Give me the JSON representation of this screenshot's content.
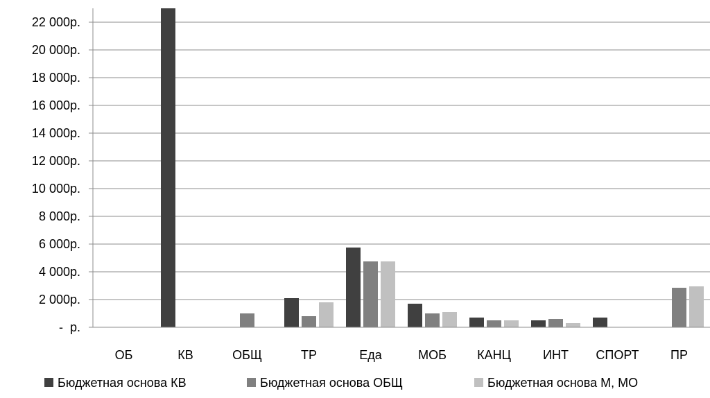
{
  "chart_data": {
    "type": "bar",
    "categories": [
      "ОБ",
      "КВ",
      "ОБЩ",
      "ТР",
      "Еда",
      "МОБ",
      "КАНЦ",
      "ИНТ",
      "СПОРТ",
      "ПР"
    ],
    "series": [
      {
        "name": "Бюджетная основа КВ",
        "color": "#404040",
        "values": [
          0,
          23000,
          0,
          2100,
          5750,
          1700,
          700,
          500,
          700,
          0
        ]
      },
      {
        "name": "Бюджетная основа ОБЩ",
        "color": "#808080",
        "values": [
          0,
          0,
          1000,
          800,
          4750,
          1000,
          500,
          600,
          0,
          2850
        ]
      },
      {
        "name": "Бюджетная основа М, МО",
        "color": "#c0c0c0",
        "values": [
          0,
          0,
          0,
          1800,
          4750,
          1100,
          500,
          300,
          0,
          2950
        ]
      }
    ],
    "ylim": [
      0,
      22000
    ],
    "y_ticks": [
      0,
      2000,
      4000,
      6000,
      8000,
      10000,
      12000,
      14000,
      16000,
      18000,
      20000,
      22000
    ],
    "y_tick_labels": [
      " -  р.",
      "2 000р.",
      "4 000р.",
      "6 000р.",
      "8 000р.",
      "10 000р.",
      "12 000р.",
      "14 000р.",
      "16 000р.",
      "18 000р.",
      "20 000р.",
      "22 000р."
    ],
    "grid": true,
    "legend_position": "bottom",
    "title": "",
    "xlabel": "",
    "ylabel": ""
  }
}
